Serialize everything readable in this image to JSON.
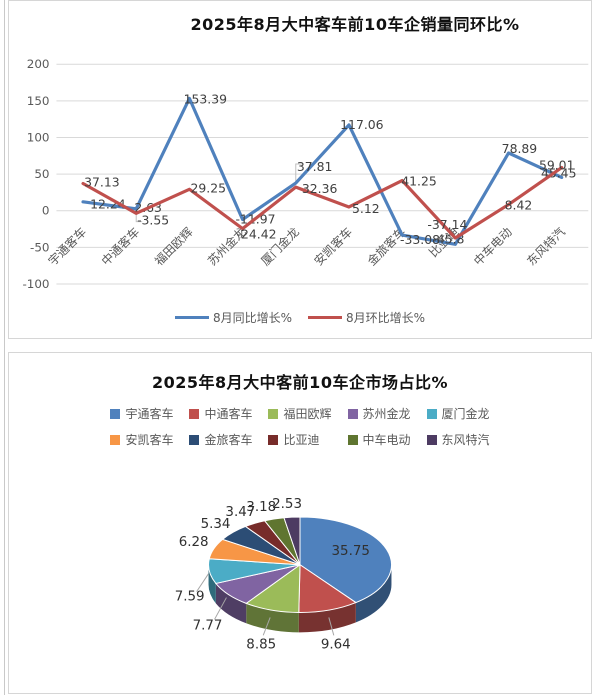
{
  "chart_data": [
    {
      "type": "line",
      "title": "2025年8月大中客车前10车企销量同环比%",
      "categories": [
        "宇通客车",
        "中通客车",
        "福田欧辉",
        "苏州金龙",
        "厦门金龙",
        "安凯客车",
        "金旅客车",
        "比亚迪",
        "中车电动",
        "东风特汽"
      ],
      "series": [
        {
          "name": "8月同比增长%",
          "color": "#4F81BD",
          "values": [
            12.24,
            2.63,
            153.39,
            -11.97,
            37.81,
            117.06,
            -33.08,
            -45.8,
            78.89,
            45.45
          ],
          "labels": [
            "12.24",
            "2.63",
            "153.39",
            "-11.97",
            "37.81",
            "117.06",
            "-33.08",
            "-45.8",
            "78.89",
            "45.45"
          ]
        },
        {
          "name": "8月环比增长%",
          "color": "#C0504D",
          "values": [
            37.13,
            -3.55,
            29.25,
            -24.42,
            32.36,
            5.12,
            41.25,
            -37.14,
            8.42,
            59.01
          ],
          "labels": [
            "37.13",
            "-3.55",
            "29.25",
            "-24.42",
            "32.36",
            "5.12",
            "41.25",
            "-37.14",
            "8.42",
            "59.01"
          ]
        }
      ],
      "y_ticks": [
        200,
        150,
        100,
        50,
        0,
        -50,
        -100
      ],
      "ylim": [
        -100,
        200
      ],
      "grid": true,
      "legend_position": "bottom"
    },
    {
      "type": "pie",
      "title": "2025年8月大中客前10车企市场占比%",
      "legend_position": "top",
      "slices": [
        {
          "label": "宇通客车",
          "value": 35.75,
          "text": "35.75",
          "color": "#4F81BD"
        },
        {
          "label": "中通客车",
          "value": 9.64,
          "text": "9.64",
          "color": "#C0504D"
        },
        {
          "label": "福田欧辉",
          "value": 8.85,
          "text": "8.85",
          "color": "#9BBB59"
        },
        {
          "label": "苏州金龙",
          "value": 7.77,
          "text": "7.77",
          "color": "#8064A2"
        },
        {
          "label": "厦门金龙",
          "value": 7.59,
          "text": "7.59",
          "color": "#4BACC6"
        },
        {
          "label": "安凯客车",
          "value": 6.28,
          "text": "6.28",
          "color": "#F79646"
        },
        {
          "label": "金旅客车",
          "value": 5.34,
          "text": "5.34",
          "color": "#2C4D75"
        },
        {
          "label": "比亚迪",
          "value": 3.47,
          "text": "3.47",
          "color": "#772C2A"
        },
        {
          "label": "中车电动",
          "value": 3.18,
          "text": "3.18",
          "color": "#5F7530"
        },
        {
          "label": "东风特汽",
          "value": 2.53,
          "text": "2.53",
          "color": "#4D3B62"
        }
      ]
    }
  ],
  "ui_colors": {
    "gridline": "#d9d9d9",
    "tick_text": "#595959",
    "data_label": "#404040",
    "panel_border": "#d6d6d6"
  }
}
